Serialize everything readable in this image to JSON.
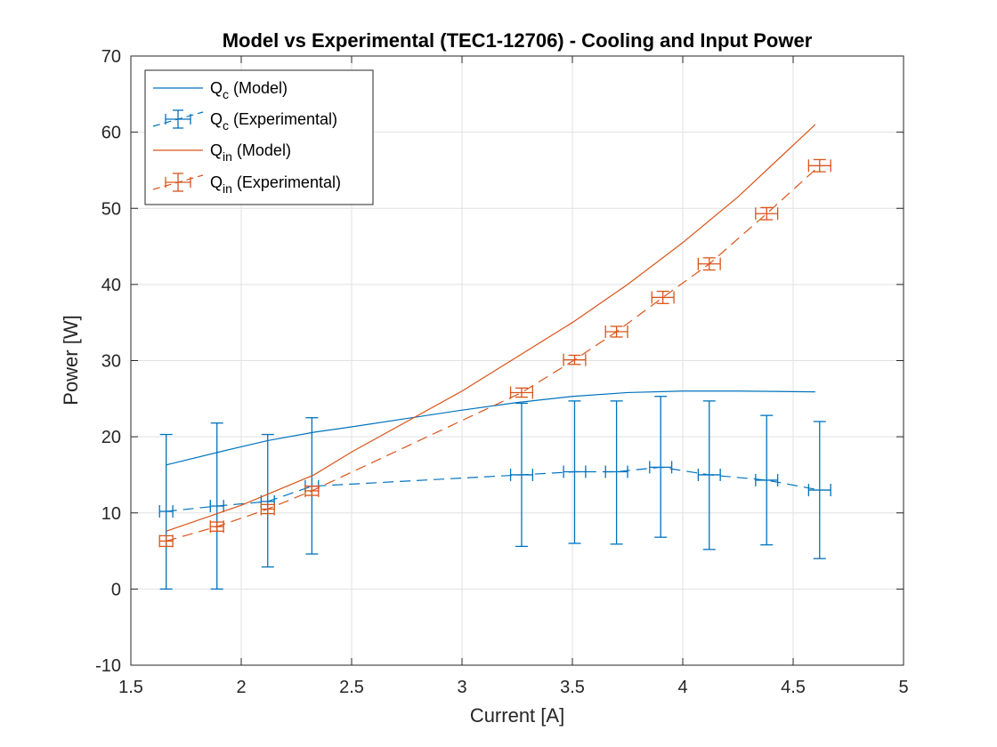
{
  "chart_data": {
    "type": "line",
    "title": "Model vs Experimental (TEC1-12706) - Cooling and Input Power",
    "xlabel": "Current [A]",
    "ylabel": "Power [W]",
    "xlim": [
      1.5,
      5
    ],
    "ylim": [
      -10,
      70
    ],
    "xticks": [
      1.5,
      2,
      2.5,
      3,
      3.5,
      4,
      4.5,
      5
    ],
    "xtick_labels": [
      "1.5",
      "2",
      "2.5",
      "3",
      "3.5",
      "4",
      "4.5",
      "5"
    ],
    "yticks": [
      -10,
      0,
      10,
      20,
      30,
      40,
      50,
      60,
      70
    ],
    "ytick_labels": [
      "-10",
      "0",
      "10",
      "20",
      "30",
      "40",
      "50",
      "60",
      "70"
    ],
    "grid": true,
    "legend_position": "top-left",
    "series": [
      {
        "name": "Qc (Model)",
        "legend_main": "Q",
        "legend_sub": "c",
        "legend_suffix": " (Model)",
        "style": "solid",
        "color": "#0072BD",
        "x": [
          1.66,
          1.9,
          2.12,
          2.33,
          2.5,
          2.75,
          3.0,
          3.25,
          3.5,
          3.75,
          4.0,
          4.25,
          4.6
        ],
        "y": [
          16.3,
          18.0,
          19.5,
          20.6,
          21.3,
          22.4,
          23.5,
          24.5,
          25.3,
          25.8,
          26.0,
          26.0,
          25.9
        ]
      },
      {
        "name": "Qc (Experimental)",
        "legend_main": "Q",
        "legend_sub": "c",
        "legend_suffix": " (Experimental)",
        "style": "dashed",
        "color": "#0072BD",
        "x": [
          1.66,
          1.89,
          2.12,
          2.32,
          3.27,
          3.51,
          3.7,
          3.9,
          4.12,
          4.38,
          4.62
        ],
        "y": [
          10.2,
          10.9,
          11.5,
          13.5,
          15.0,
          15.4,
          15.4,
          16.0,
          15.0,
          14.3,
          13.0
        ],
        "yerr_low": [
          10.2,
          10.9,
          8.6,
          8.9,
          9.4,
          9.4,
          9.5,
          9.2,
          9.8,
          8.5,
          9.0
        ],
        "yerr_high": [
          10.1,
          10.9,
          8.8,
          9.0,
          9.4,
          9.3,
          9.3,
          9.3,
          9.7,
          8.5,
          9.0
        ],
        "xerr": [
          0.03,
          0.03,
          0.03,
          0.03,
          0.05,
          0.05,
          0.05,
          0.05,
          0.05,
          0.05,
          0.05
        ]
      },
      {
        "name": "Qin (Model)",
        "legend_main": "Q",
        "legend_sub": "in",
        "legend_suffix": " (Model)",
        "style": "solid",
        "color": "#D95319",
        "x": [
          1.66,
          2.0,
          2.33,
          2.5,
          3.0,
          3.25,
          3.5,
          3.75,
          4.0,
          4.25,
          4.6
        ],
        "y": [
          7.6,
          11.0,
          15.0,
          18.0,
          26.0,
          30.5,
          35.0,
          40.0,
          45.5,
          51.5,
          61.0
        ],
        "yerr_low": [],
        "yerr_high": []
      },
      {
        "name": "Qin (Experimental)",
        "legend_main": "Q",
        "legend_sub": "in",
        "legend_suffix": " (Experimental)",
        "style": "dashed",
        "color": "#D95319",
        "x": [
          1.66,
          1.89,
          2.12,
          2.32,
          3.27,
          3.51,
          3.7,
          3.91,
          4.12,
          4.38,
          4.62
        ],
        "y": [
          6.3,
          8.2,
          10.5,
          12.9,
          25.8,
          30.1,
          33.8,
          38.3,
          42.7,
          49.3,
          55.6
        ],
        "yerr_low": [
          0.7,
          0.6,
          0.6,
          0.6,
          0.6,
          0.6,
          0.7,
          0.8,
          0.8,
          0.8,
          0.8
        ],
        "yerr_high": [
          0.7,
          0.6,
          0.6,
          0.6,
          0.6,
          0.6,
          0.7,
          0.8,
          0.8,
          0.8,
          0.8
        ],
        "xerr": [
          0.03,
          0.03,
          0.03,
          0.03,
          0.05,
          0.05,
          0.05,
          0.05,
          0.05,
          0.05,
          0.05
        ]
      }
    ]
  }
}
